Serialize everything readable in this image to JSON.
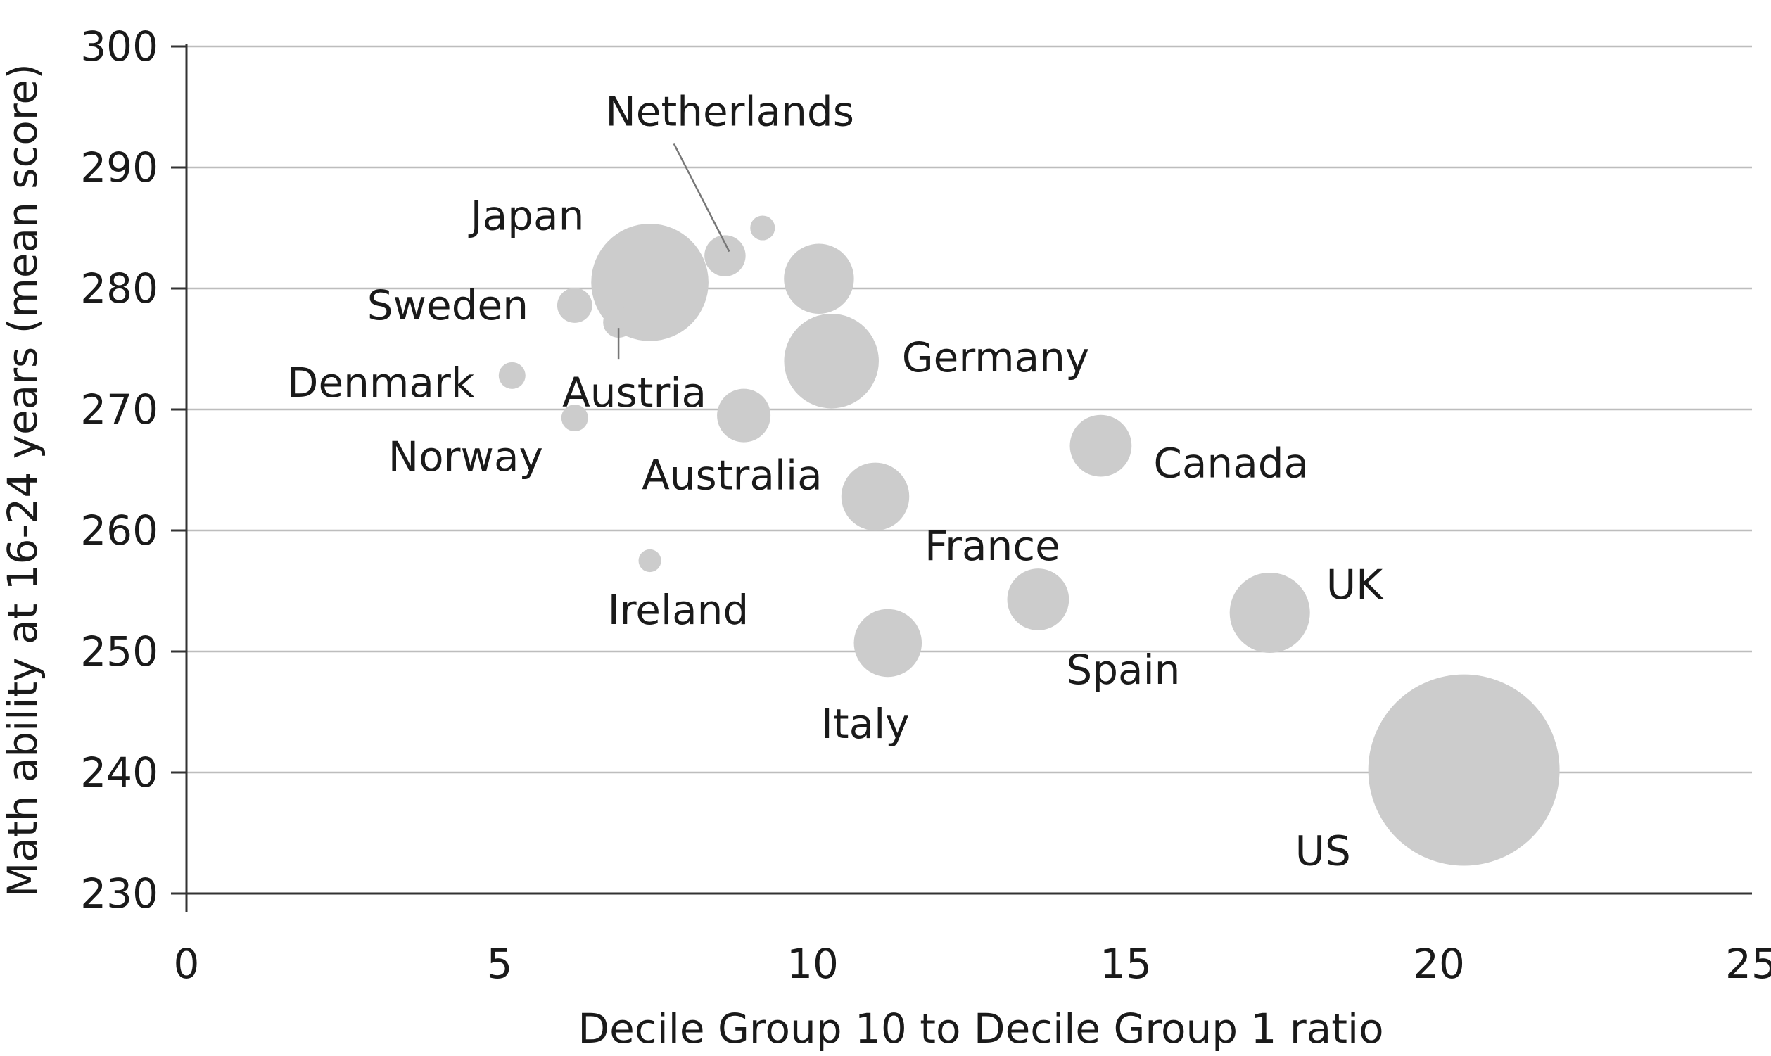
{
  "chart_data": {
    "type": "scatter",
    "title": "",
    "xlabel": "Decile Group 10 to Decile Group 1 ratio",
    "ylabel": "Math ability at 16-24 years (mean score)",
    "xlim": [
      0,
      25
    ],
    "ylim": [
      230,
      300
    ],
    "x_ticks": [
      "0",
      "5",
      "10",
      "15",
      "20",
      "25"
    ],
    "y_ticks": [
      "230",
      "240",
      "250",
      "260",
      "270",
      "280",
      "290",
      "300"
    ],
    "grid": true,
    "bubble_color": "#cccccc",
    "points": [
      {
        "label": "Netherlands",
        "x": 8.6,
        "y": 282.7,
        "size": 20
      },
      {
        "label": "",
        "x": 9.2,
        "y": 285.0,
        "size": 12
      },
      {
        "label": "Japan",
        "x": 7.4,
        "y": 280.5,
        "size": 57
      },
      {
        "label": "",
        "x": 10.1,
        "y": 280.8,
        "size": 34
      },
      {
        "label": "Sweden",
        "x": 6.2,
        "y": 278.6,
        "size": 17
      },
      {
        "label": "Austria",
        "x": 6.9,
        "y": 277.2,
        "size": 15
      },
      {
        "label": "Denmark",
        "x": 5.2,
        "y": 272.8,
        "size": 13
      },
      {
        "label": "Germany",
        "x": 10.3,
        "y": 274.0,
        "size": 46
      },
      {
        "label": "Norway",
        "x": 6.2,
        "y": 269.3,
        "size": 13
      },
      {
        "label": "Australia",
        "x": 8.9,
        "y": 269.5,
        "size": 26
      },
      {
        "label": "Canada",
        "x": 14.6,
        "y": 267.0,
        "size": 30
      },
      {
        "label": "France",
        "x": 11.0,
        "y": 262.8,
        "size": 33
      },
      {
        "label": "Ireland",
        "x": 7.4,
        "y": 257.5,
        "size": 11
      },
      {
        "label": "Spain",
        "x": 13.6,
        "y": 254.3,
        "size": 30
      },
      {
        "label": "UK",
        "x": 17.3,
        "y": 253.2,
        "size": 39
      },
      {
        "label": "Italy",
        "x": 11.2,
        "y": 250.7,
        "size": 33
      },
      {
        "label": "US",
        "x": 20.4,
        "y": 240.2,
        "size": 93
      }
    ]
  }
}
